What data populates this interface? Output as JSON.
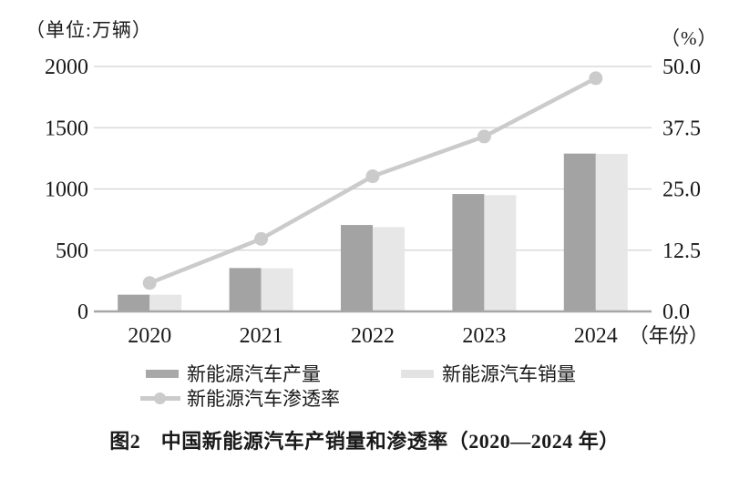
{
  "chart_data": {
    "type": "combo-bar-line",
    "categories": [
      "2020",
      "2021",
      "2022",
      "2023",
      "2024"
    ],
    "series": [
      {
        "name": "新能源汽车产量",
        "type": "bar",
        "axis": "left",
        "color": "#a3a3a3",
        "values": [
          136.6,
          354.5,
          705.8,
          958.7,
          1288.8
        ]
      },
      {
        "name": "新能源汽车销量",
        "type": "bar",
        "axis": "left",
        "color": "#e7e7e7",
        "values": [
          136.7,
          352.1,
          688.7,
          949.5,
          1286.6
        ]
      },
      {
        "name": "新能源汽车渗透率",
        "type": "line",
        "axis": "right",
        "color": "#cbcbcb",
        "values": [
          5.8,
          14.8,
          27.6,
          35.7,
          47.6
        ]
      }
    ],
    "left_axis": {
      "unit_label": "（单位:万辆）",
      "ticks": [
        0,
        500,
        1000,
        1500,
        2000
      ],
      "min": 0,
      "max": 2000
    },
    "right_axis": {
      "unit_label": "（%）",
      "tick_labels": [
        "0.0",
        "12.5",
        "25.0",
        "37.5",
        "50.0"
      ],
      "min": 0,
      "max": 50
    },
    "x_axis": {
      "suffix_label": "（年份）"
    },
    "grid": true,
    "legend_position": "bottom",
    "caption": "图2　中国新能源汽车产销量和渗透率（2020—2024 年）",
    "colors": {
      "grid": "#d2d2d2",
      "baseline": "#a6a6a6",
      "text": "#1a1a1a"
    }
  }
}
